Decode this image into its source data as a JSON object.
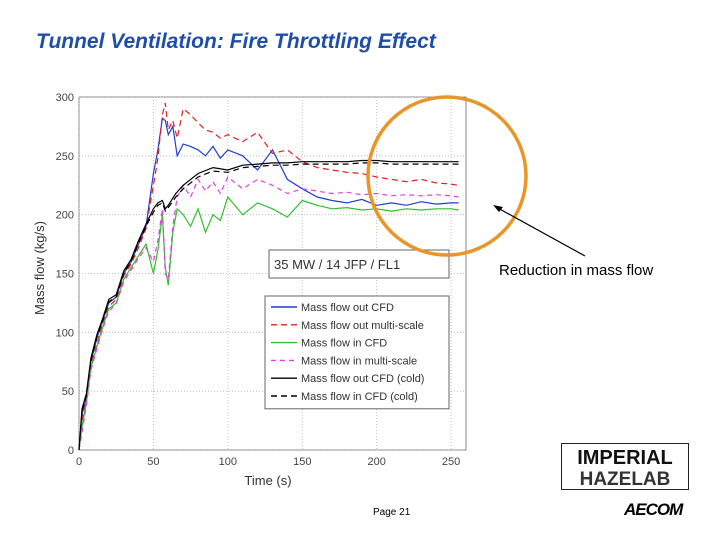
{
  "slide": {
    "title": "Tunnel Ventilation: Fire Throttling Effect",
    "annotation": "Reduction in mass flow",
    "page": "Page 21",
    "logo_top": "IMPERIAL",
    "logo_bottom": "HAZELAB",
    "logo_aecom": "AECOM"
  },
  "colors": {
    "title": "#1f4ea8",
    "highlight_circle": "#e8962a"
  },
  "chart_data": {
    "type": "line",
    "title": "",
    "xlabel": "Time (s)",
    "ylabel": "Mass flow (kg/s)",
    "xlim": [
      0,
      260
    ],
    "ylim": [
      0,
      300
    ],
    "xticks": [
      0,
      50,
      100,
      150,
      200,
      250
    ],
    "yticks": [
      0,
      50,
      100,
      150,
      200,
      250,
      300
    ],
    "grid": true,
    "legend_position": "lower-right",
    "scenario_label": "35 MW / 14 JFP / FL1",
    "series": [
      {
        "name": "Mass flow out CFD",
        "color": "#1f3fd0",
        "dash": "solid",
        "x": [
          0,
          2,
          5,
          8,
          12,
          16,
          20,
          25,
          30,
          35,
          40,
          45,
          50,
          53,
          56,
          58,
          60,
          63,
          66,
          70,
          75,
          80,
          85,
          90,
          95,
          100,
          110,
          120,
          130,
          140,
          150,
          160,
          170,
          180,
          190,
          200,
          210,
          220,
          230,
          240,
          250,
          255
        ],
        "y": [
          0,
          30,
          45,
          75,
          95,
          110,
          125,
          130,
          150,
          160,
          175,
          190,
          235,
          255,
          282,
          280,
          268,
          275,
          250,
          260,
          258,
          255,
          250,
          258,
          248,
          255,
          250,
          238,
          255,
          230,
          222,
          215,
          212,
          210,
          213,
          208,
          210,
          208,
          211,
          209,
          210,
          210
        ]
      },
      {
        "name": "Mass flow out multi-scale",
        "color": "#e02020",
        "dash": "6,4",
        "x": [
          0,
          2,
          5,
          8,
          12,
          16,
          20,
          25,
          30,
          35,
          40,
          45,
          50,
          53,
          56,
          58,
          60,
          63,
          66,
          70,
          75,
          80,
          85,
          90,
          95,
          100,
          110,
          120,
          130,
          140,
          150,
          160,
          170,
          180,
          190,
          200,
          210,
          220,
          230,
          240,
          250,
          255
        ],
        "y": [
          0,
          25,
          42,
          72,
          90,
          108,
          122,
          128,
          148,
          158,
          172,
          188,
          225,
          248,
          285,
          295,
          272,
          280,
          265,
          290,
          285,
          278,
          272,
          270,
          265,
          268,
          262,
          270,
          252,
          255,
          245,
          240,
          238,
          236,
          235,
          232,
          230,
          228,
          230,
          227,
          226,
          225
        ]
      },
      {
        "name": "Mass flow in CFD",
        "color": "#2fc02f",
        "dash": "solid",
        "x": [
          0,
          2,
          5,
          8,
          12,
          16,
          20,
          25,
          30,
          35,
          40,
          45,
          50,
          53,
          56,
          58,
          60,
          63,
          66,
          70,
          75,
          80,
          85,
          90,
          95,
          100,
          110,
          120,
          130,
          140,
          150,
          160,
          170,
          180,
          190,
          200,
          210,
          220,
          230,
          240,
          250,
          255
        ],
        "y": [
          0,
          20,
          40,
          70,
          88,
          105,
          120,
          125,
          145,
          155,
          165,
          175,
          150,
          170,
          200,
          155,
          140,
          185,
          205,
          200,
          190,
          205,
          185,
          200,
          195,
          215,
          200,
          210,
          205,
          198,
          212,
          208,
          205,
          206,
          204,
          205,
          203,
          205,
          204,
          205,
          205,
          204
        ]
      },
      {
        "name": "Mass flow in multi-scale",
        "color": "#e040e0",
        "dash": "5,4",
        "x": [
          0,
          2,
          5,
          8,
          12,
          16,
          20,
          25,
          30,
          35,
          40,
          45,
          50,
          53,
          56,
          58,
          60,
          63,
          66,
          70,
          75,
          80,
          85,
          90,
          95,
          100,
          110,
          120,
          130,
          140,
          150,
          160,
          170,
          180,
          190,
          200,
          210,
          220,
          230,
          240,
          250,
          255
        ],
        "y": [
          0,
          15,
          38,
          68,
          86,
          103,
          118,
          124,
          143,
          153,
          163,
          172,
          160,
          178,
          205,
          150,
          145,
          190,
          215,
          225,
          215,
          230,
          220,
          228,
          218,
          232,
          222,
          230,
          225,
          218,
          222,
          220,
          218,
          219,
          217,
          218,
          216,
          217,
          216,
          217,
          216,
          215
        ]
      },
      {
        "name": "Mass flow out CFD (cold)",
        "color": "#000000",
        "dash": "solid",
        "x": [
          0,
          2,
          5,
          8,
          12,
          16,
          20,
          25,
          30,
          35,
          40,
          45,
          50,
          53,
          56,
          58,
          60,
          65,
          70,
          80,
          90,
          100,
          110,
          120,
          130,
          140,
          150,
          160,
          170,
          180,
          190,
          200,
          210,
          220,
          230,
          240,
          250,
          255
        ],
        "y": [
          0,
          35,
          48,
          78,
          98,
          112,
          128,
          132,
          152,
          162,
          178,
          192,
          205,
          210,
          212,
          205,
          208,
          218,
          225,
          235,
          240,
          238,
          242,
          243,
          244,
          244,
          245,
          245,
          245,
          245,
          246,
          246,
          245,
          245,
          245,
          245,
          245,
          245
        ]
      },
      {
        "name": "Mass flow in CFD (cold)",
        "color": "#000000",
        "dash": "6,4",
        "x": [
          0,
          2,
          5,
          8,
          12,
          16,
          20,
          25,
          30,
          35,
          40,
          45,
          50,
          53,
          56,
          58,
          60,
          65,
          70,
          80,
          90,
          100,
          110,
          120,
          130,
          140,
          150,
          160,
          170,
          180,
          190,
          200,
          210,
          220,
          230,
          240,
          250,
          255
        ],
        "y": [
          0,
          33,
          46,
          76,
          96,
          110,
          126,
          130,
          150,
          160,
          176,
          190,
          202,
          208,
          210,
          203,
          206,
          215,
          222,
          232,
          237,
          236,
          240,
          241,
          242,
          242,
          243,
          243,
          243,
          243,
          244,
          244,
          243,
          243,
          243,
          243,
          243,
          243
        ]
      }
    ]
  }
}
